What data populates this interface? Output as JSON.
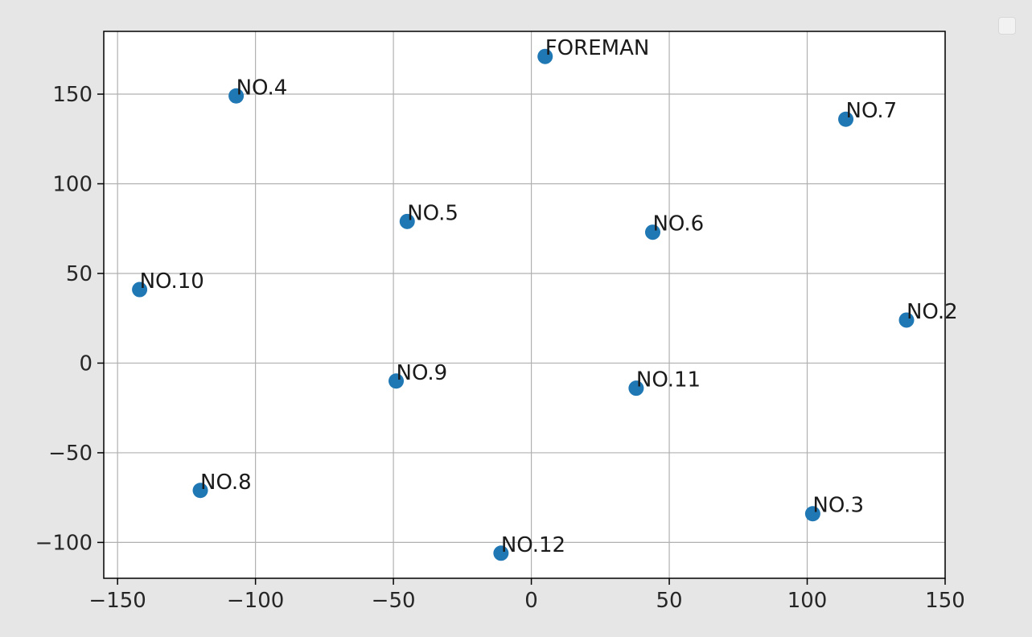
{
  "chart_data": {
    "type": "scatter",
    "title": "",
    "xlabel": "",
    "ylabel": "",
    "xlim": [
      -155,
      150
    ],
    "ylim": [
      -120,
      185
    ],
    "xticks": [
      -150,
      -100,
      -50,
      0,
      50,
      100,
      150
    ],
    "yticks": [
      -100,
      -50,
      0,
      50,
      100,
      150
    ],
    "xtick_labels": [
      "−150",
      "−100",
      "−50",
      "0",
      "50",
      "100",
      "150"
    ],
    "ytick_labels": [
      "−100",
      "−50",
      "0",
      "50",
      "100",
      "150"
    ],
    "grid": true,
    "marker_color": "#1f77b4",
    "points": [
      {
        "label": "FOREMAN",
        "x": 5,
        "y": 171
      },
      {
        "label": "NO.2",
        "x": 136,
        "y": 24
      },
      {
        "label": "NO.3",
        "x": 102,
        "y": -84
      },
      {
        "label": "NO.4",
        "x": -107,
        "y": 149
      },
      {
        "label": "NO.5",
        "x": -45,
        "y": 79
      },
      {
        "label": "NO.6",
        "x": 44,
        "y": 73
      },
      {
        "label": "NO.7",
        "x": 114,
        "y": 136
      },
      {
        "label": "NO.8",
        "x": -120,
        "y": -71
      },
      {
        "label": "NO.9",
        "x": -49,
        "y": -10
      },
      {
        "label": "NO.10",
        "x": -142,
        "y": 41
      },
      {
        "label": "NO.11",
        "x": 38,
        "y": -14
      },
      {
        "label": "NO.12",
        "x": -11,
        "y": -106
      }
    ]
  }
}
